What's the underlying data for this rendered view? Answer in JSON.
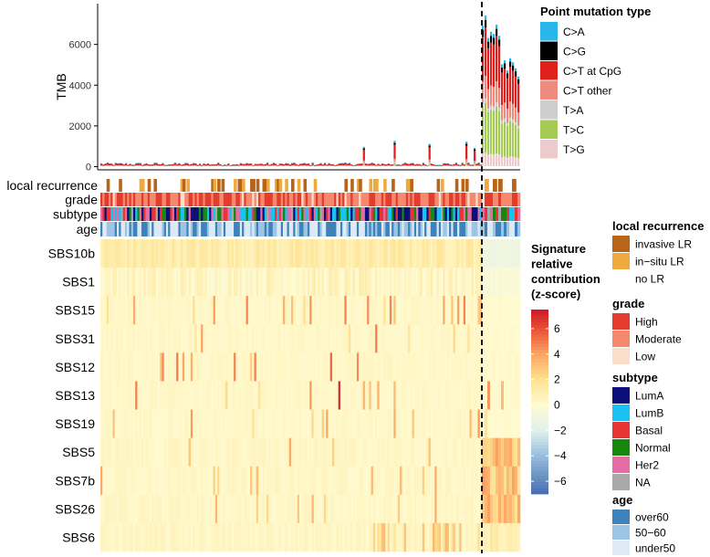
{
  "chart_data": {
    "type": "bar",
    "description_panels": [
      "stacked TMB bar chart",
      "clinical annotation tracks",
      "signature z-score heatmap"
    ],
    "tmb": {
      "ylabel": "TMB",
      "yticks": [
        0,
        2000,
        4000,
        6000
      ],
      "ylim": [
        0,
        7800
      ],
      "n_samples": 200,
      "highlight_samples": [
        {
          "index": 0,
          "total": 6900
        },
        {
          "index": 1,
          "total": 7400
        },
        {
          "index": 2,
          "total": 6300
        },
        {
          "index": 3,
          "total": 6600
        },
        {
          "index": 4,
          "total": 6500
        },
        {
          "index": 5,
          "total": 6950
        },
        {
          "index": 6,
          "total": 6400
        },
        {
          "index": 7,
          "total": 5000
        },
        {
          "index": 8,
          "total": 5200
        },
        {
          "index": 9,
          "total": 4700
        },
        {
          "index": 10,
          "total": 5300
        },
        {
          "index": 11,
          "total": 5100
        },
        {
          "index": 12,
          "total": 4800
        },
        {
          "index": 13,
          "total": 4400
        }
      ],
      "low_sample_peaks": [
        {
          "index": 128,
          "total": 950
        },
        {
          "index": 143,
          "total": 1250
        },
        {
          "index": 160,
          "total": 1100
        },
        {
          "index": 178,
          "total": 1200
        },
        {
          "index": 182,
          "total": 900
        }
      ]
    },
    "legend_mutation": {
      "title": "Point mutation type",
      "items": [
        {
          "label": "C>A",
          "color": "#29B6E8"
        },
        {
          "label": "C>G",
          "color": "#000000"
        },
        {
          "label": "C>T at CpG",
          "color": "#E0201C"
        },
        {
          "label": "C>T other",
          "color": "#EE8A7E"
        },
        {
          "label": "T>A",
          "color": "#CECECE"
        },
        {
          "label": "T>C",
          "color": "#A5CB55"
        },
        {
          "label": "T>G",
          "color": "#EDCACB"
        }
      ],
      "typical_fractions_low": [
        0.08,
        0.08,
        0.55,
        0.12,
        0.04,
        0.08,
        0.05
      ],
      "typical_fractions_high": [
        0.03,
        0.05,
        0.32,
        0.15,
        0.03,
        0.33,
        0.09
      ]
    },
    "tracks": [
      {
        "label": "local recurrence"
      },
      {
        "label": "grade"
      },
      {
        "label": "subtype"
      },
      {
        "label": "age"
      }
    ],
    "heatmap": {
      "rows": [
        "SBS10b",
        "SBS1",
        "SBS15",
        "SBS31",
        "SBS12",
        "SBS13",
        "SBS19",
        "SBS5",
        "SBS7b",
        "SBS26",
        "SBS6"
      ],
      "color_min": -7,
      "color_max": 7.5
    },
    "legend_signature": {
      "title_lines": [
        "Signature",
        "relative",
        "contribution",
        "(z-score)"
      ],
      "ticks": [
        6,
        4,
        2,
        0,
        -2,
        -4,
        -6
      ],
      "tick_labels": [
        "6",
        "4",
        "2",
        "0",
        "−2",
        "−4",
        "−6"
      ]
    },
    "legend_local_recurrence": {
      "title": "local recurrence",
      "items": [
        {
          "label": "invasive LR",
          "color": "#B8651A"
        },
        {
          "label": "in−situ LR",
          "color": "#EFA941"
        },
        {
          "label": "no LR",
          "color": "#FFFFFF"
        }
      ]
    },
    "legend_grade": {
      "title": "grade",
      "items": [
        {
          "label": "High",
          "color": "#E33C2C"
        },
        {
          "label": "Moderate",
          "color": "#F4896E"
        },
        {
          "label": "Low",
          "color": "#FCDCCB"
        }
      ]
    },
    "legend_subtype": {
      "title": "subtype",
      "items": [
        {
          "label": "LumA",
          "color": "#0A0F7A"
        },
        {
          "label": "LumB",
          "color": "#19C2F2"
        },
        {
          "label": "Basal",
          "color": "#E93434"
        },
        {
          "label": "Normal",
          "color": "#17870E"
        },
        {
          "label": "Her2",
          "color": "#E66CA4"
        },
        {
          "label": "NA",
          "color": "#A8A8A8"
        }
      ]
    },
    "legend_age": {
      "title": "age",
      "items": [
        {
          "label": "over60",
          "color": "#3E82BC"
        },
        {
          "label": "50−60",
          "color": "#9DC5E3"
        },
        {
          "label": "under50",
          "color": "#DDEAF5"
        }
      ]
    }
  }
}
